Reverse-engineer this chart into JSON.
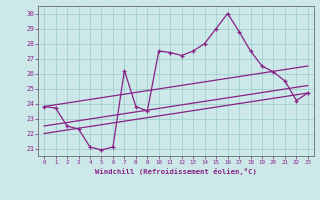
{
  "xlabel": "Windchill (Refroidissement éolien,°C)",
  "bg_color": "#cce8e8",
  "grid_color": "#99cccc",
  "line_color": "#882288",
  "spine_color": "#555555",
  "xlim": [
    -0.5,
    23.5
  ],
  "ylim": [
    20.5,
    30.5
  ],
  "xticks": [
    0,
    1,
    2,
    3,
    4,
    5,
    6,
    7,
    8,
    9,
    10,
    11,
    12,
    13,
    14,
    15,
    16,
    17,
    18,
    19,
    20,
    21,
    22,
    23
  ],
  "yticks": [
    21,
    22,
    23,
    24,
    25,
    26,
    27,
    28,
    29,
    30
  ],
  "series": [
    {
      "x": [
        0,
        1,
        2,
        3,
        4,
        5,
        6,
        7,
        8,
        9,
        10,
        11,
        12,
        13,
        14,
        15,
        16,
        17,
        18,
        19,
        20,
        21,
        22,
        23
      ],
      "y": [
        23.8,
        23.7,
        22.5,
        22.3,
        21.1,
        20.9,
        21.1,
        26.2,
        23.8,
        23.5,
        27.5,
        27.4,
        27.2,
        27.5,
        28.0,
        29.0,
        30.0,
        28.8,
        27.5,
        26.5,
        26.1,
        25.5,
        24.2,
        24.7
      ]
    },
    {
      "x": [
        0,
        23
      ],
      "y": [
        23.8,
        26.5
      ]
    },
    {
      "x": [
        0,
        23
      ],
      "y": [
        22.5,
        25.2
      ]
    },
    {
      "x": [
        0,
        23
      ],
      "y": [
        22.0,
        24.7
      ]
    }
  ]
}
